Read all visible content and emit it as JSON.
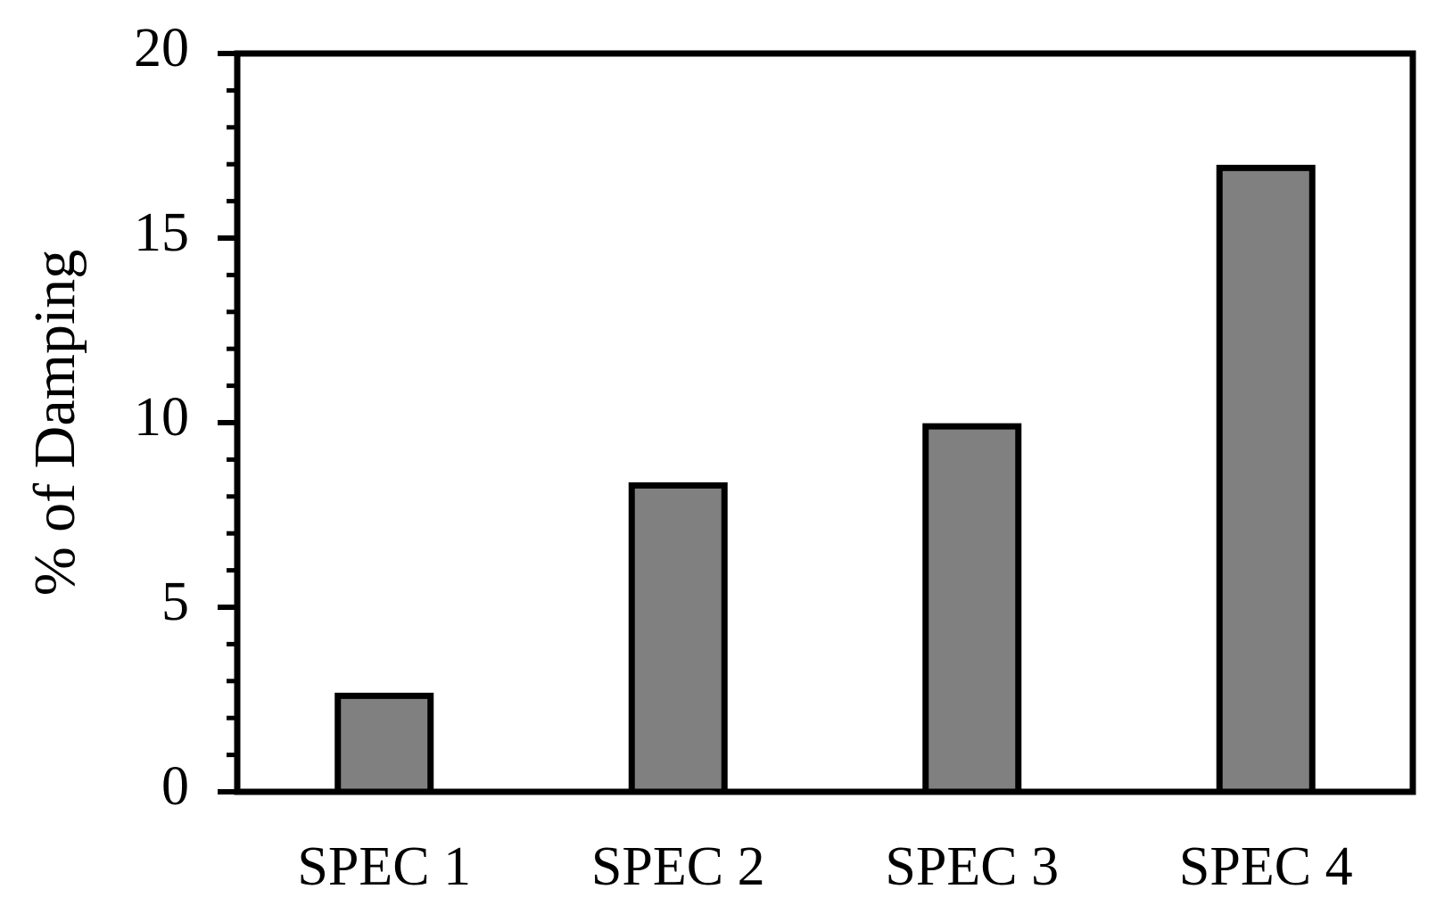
{
  "chart_data": {
    "type": "bar",
    "y_label": "% of Damping",
    "categories": [
      "SPEC 1",
      "SPEC 2",
      "SPEC 3",
      "SPEC 4"
    ],
    "values": [
      2.6,
      8.3,
      9.9,
      16.9
    ],
    "color": "#808080",
    "ylim": [
      0,
      20
    ],
    "yticks": [
      0,
      5,
      10,
      15,
      20
    ],
    "minor_yticks": [
      1,
      2,
      3,
      4,
      6,
      7,
      8,
      9,
      11,
      12,
      13,
      14,
      16,
      17,
      18,
      19
    ],
    "grid": false
  }
}
